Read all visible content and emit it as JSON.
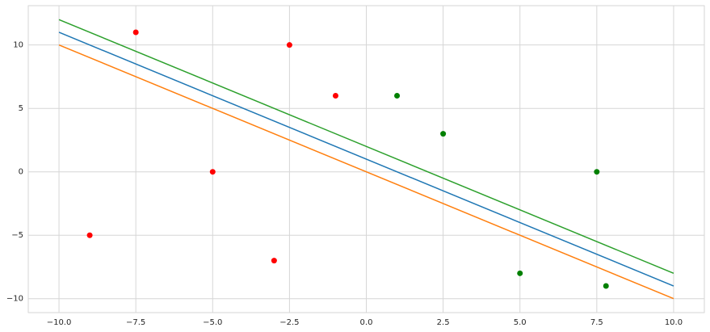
{
  "chart_data": {
    "type": "line",
    "x": [
      -10,
      10
    ],
    "series": [
      {
        "color": "#1f77b4",
        "values": [
          11,
          -9
        ]
      },
      {
        "color": "#ff7f0e",
        "values": [
          10,
          -10
        ]
      },
      {
        "color": "#2ca02c",
        "values": [
          12,
          -8
        ]
      }
    ],
    "scatter": [
      {
        "color": "#ff0000",
        "x": [
          -9,
          -7.5,
          -5,
          -3,
          -2.5,
          -1
        ],
        "values": [
          -5,
          11,
          0,
          -7,
          10,
          6
        ]
      },
      {
        "color": "#008000",
        "x": [
          1,
          2.5,
          5,
          7.5,
          7.8
        ],
        "values": [
          6,
          3,
          -8,
          0,
          -9
        ]
      }
    ],
    "xlim": [
      -11,
      11
    ],
    "ylim": [
      -11.1,
      13.1
    ],
    "xticks": [
      {
        "value": -10,
        "label": "−10.0"
      },
      {
        "value": -7.5,
        "label": "−7.5"
      },
      {
        "value": -5,
        "label": "−5.0"
      },
      {
        "value": -2.5,
        "label": "−2.5"
      },
      {
        "value": 0,
        "label": "0.0"
      },
      2.5,
      {
        "value": 5,
        "label": "5.0"
      },
      7.5,
      {
        "value": 10,
        "label": "10.0"
      }
    ],
    "yticks": [
      {
        "value": -10,
        "label": "−10"
      },
      {
        "value": -5,
        "label": "−5"
      },
      0,
      5,
      10
    ],
    "grid": true
  }
}
